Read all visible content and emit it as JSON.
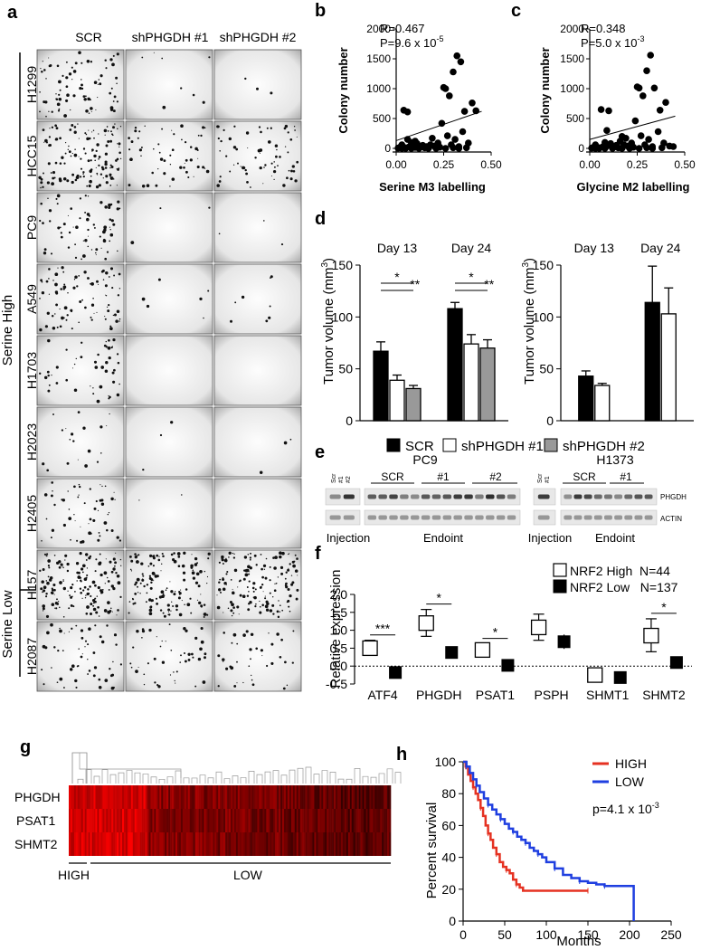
{
  "panel_letters": {
    "a": "a",
    "b": "b",
    "c": "c",
    "d": "d",
    "e": "e",
    "f": "f",
    "g": "g",
    "h": "h"
  },
  "panel_a": {
    "columns": [
      "SCR",
      "shPHGDH #1",
      "shPHGDH #2"
    ],
    "rows": [
      "H1299",
      "HCC15",
      "PC9",
      "A549",
      "H1703",
      "H2023",
      "H2405",
      "H157",
      "H2087"
    ],
    "group_high": "Serine High",
    "group_low": "Serine Low",
    "densities": [
      [
        0.5,
        0.05,
        0.02
      ],
      [
        0.9,
        0.35,
        0.45
      ],
      [
        0.45,
        0.02,
        0.02
      ],
      [
        0.55,
        0.04,
        0.05
      ],
      [
        0.3,
        0.0,
        0.0
      ],
      [
        0.12,
        0.02,
        0.02
      ],
      [
        0.35,
        0.01,
        0.0
      ],
      [
        1.0,
        0.9,
        0.95
      ],
      [
        0.35,
        0.3,
        0.25
      ]
    ]
  },
  "panel_b": {
    "stats_r": "R=0.467",
    "stats_p": "P=9.6 x 10",
    "stats_p_exp": "-5",
    "chart_data": {
      "type": "scatter",
      "xlabel": "Serine M3 labelling",
      "ylabel": "Colony number",
      "xlim": [
        0.0,
        0.5
      ],
      "ylim": [
        0,
        2000
      ],
      "xticks": [
        "0.00",
        "0.25",
        "0.50"
      ],
      "yticks": [
        "0",
        "500",
        "1000",
        "1500",
        "2000"
      ],
      "points": [
        [
          0.02,
          20
        ],
        [
          0.03,
          60
        ],
        [
          0.05,
          10
        ],
        [
          0.06,
          150
        ],
        [
          0.07,
          30
        ],
        [
          0.08,
          100
        ],
        [
          0.09,
          40
        ],
        [
          0.1,
          15
        ],
        [
          0.11,
          80
        ],
        [
          0.12,
          5
        ],
        [
          0.13,
          25
        ],
        [
          0.14,
          50
        ],
        [
          0.15,
          10
        ],
        [
          0.04,
          640
        ],
        [
          0.06,
          610
        ],
        [
          0.1,
          120
        ],
        [
          0.16,
          30
        ],
        [
          0.18,
          60
        ],
        [
          0.19,
          170
        ],
        [
          0.2,
          40
        ],
        [
          0.22,
          90
        ],
        [
          0.23,
          20
        ],
        [
          0.24,
          420
        ],
        [
          0.25,
          1020
        ],
        [
          0.26,
          1000
        ],
        [
          0.27,
          210
        ],
        [
          0.28,
          880
        ],
        [
          0.29,
          60
        ],
        [
          0.3,
          1280
        ],
        [
          0.31,
          150
        ],
        [
          0.32,
          1550
        ],
        [
          0.33,
          30
        ],
        [
          0.34,
          1450
        ],
        [
          0.35,
          280
        ],
        [
          0.36,
          620
        ],
        [
          0.37,
          10
        ],
        [
          0.38,
          90
        ],
        [
          0.4,
          760
        ],
        [
          0.42,
          630
        ],
        [
          0.01,
          5
        ],
        [
          0.03,
          0
        ],
        [
          0.05,
          0
        ],
        [
          0.08,
          0
        ],
        [
          0.12,
          0
        ],
        [
          0.17,
          0
        ],
        [
          0.21,
          0
        ],
        [
          0.26,
          0
        ],
        [
          0.3,
          10
        ],
        [
          0.33,
          0
        ]
      ],
      "trend": [
        [
          0.0,
          130
        ],
        [
          0.45,
          620
        ]
      ]
    }
  },
  "panel_c": {
    "stats_r": "R=0.348",
    "stats_p": "P=5.0 x 10",
    "stats_p_exp": "-3",
    "chart_data": {
      "type": "scatter",
      "xlabel": "Glycine M2 labelling",
      "ylabel": "Colony number",
      "xlim": [
        0.0,
        0.5
      ],
      "ylim": [
        0,
        2000
      ],
      "xticks": [
        "0.00",
        "0.25",
        "0.50"
      ],
      "yticks": [
        "0",
        "500",
        "1000",
        "1500",
        "2000"
      ],
      "points": [
        [
          0.02,
          20
        ],
        [
          0.03,
          60
        ],
        [
          0.05,
          10
        ],
        [
          0.06,
          650
        ],
        [
          0.07,
          30
        ],
        [
          0.08,
          100
        ],
        [
          0.09,
          40
        ],
        [
          0.1,
          630
        ],
        [
          0.11,
          80
        ],
        [
          0.12,
          5
        ],
        [
          0.13,
          25
        ],
        [
          0.14,
          50
        ],
        [
          0.15,
          10
        ],
        [
          0.16,
          120
        ],
        [
          0.18,
          60
        ],
        [
          0.19,
          170
        ],
        [
          0.2,
          40
        ],
        [
          0.22,
          90
        ],
        [
          0.23,
          20
        ],
        [
          0.24,
          460
        ],
        [
          0.25,
          1030
        ],
        [
          0.26,
          1010
        ],
        [
          0.27,
          210
        ],
        [
          0.28,
          880
        ],
        [
          0.29,
          60
        ],
        [
          0.3,
          1300
        ],
        [
          0.31,
          150
        ],
        [
          0.32,
          1560
        ],
        [
          0.33,
          30
        ],
        [
          0.34,
          1010
        ],
        [
          0.36,
          280
        ],
        [
          0.37,
          640
        ],
        [
          0.38,
          10
        ],
        [
          0.39,
          90
        ],
        [
          0.4,
          770
        ],
        [
          0.42,
          40
        ],
        [
          0.44,
          30
        ],
        [
          0.01,
          5
        ],
        [
          0.03,
          0
        ],
        [
          0.05,
          0
        ],
        [
          0.08,
          0
        ],
        [
          0.12,
          0
        ],
        [
          0.17,
          0
        ],
        [
          0.21,
          0
        ],
        [
          0.26,
          0
        ],
        [
          0.3,
          10
        ],
        [
          0.33,
          0
        ],
        [
          0.17,
          200
        ],
        [
          0.09,
          300
        ]
      ],
      "trend": [
        [
          0.0,
          150
        ],
        [
          0.45,
          540
        ]
      ]
    }
  },
  "panel_d": {
    "ylabel": "Tumor volume (mm",
    "ylabel_sup": "3",
    "ylabel_close": ")",
    "legend": [
      "SCR",
      "shPHGDH #1",
      "shPHGDH #2"
    ],
    "sig_marks": [
      "*",
      "**",
      "*",
      "**"
    ],
    "chart_data": [
      {
        "type": "bar",
        "categories": [
          "Day 13",
          "Day 24"
        ],
        "ylim": [
          0,
          150
        ],
        "yticks": [
          "0",
          "50",
          "100",
          "150"
        ],
        "series": [
          {
            "name": "SCR",
            "values": [
              67,
              108
            ],
            "errors": [
              9,
              6
            ],
            "color": "#000000"
          },
          {
            "name": "shPHGDH #1",
            "values": [
              39,
              74
            ],
            "errors": [
              5,
              9
            ],
            "color": "#ffffff"
          },
          {
            "name": "shPHGDH #2",
            "values": [
              31,
              70
            ],
            "errors": [
              3,
              8
            ],
            "color": "#999999"
          }
        ]
      },
      {
        "type": "bar",
        "categories": [
          "Day 13",
          "Day 24"
        ],
        "ylim": [
          0,
          150
        ],
        "yticks": [
          "0",
          "50",
          "100",
          "150"
        ],
        "series": [
          {
            "name": "SCR",
            "values": [
              43,
              114
            ],
            "errors": [
              5,
              35
            ],
            "color": "#000000"
          },
          {
            "name": "shPHGDH #1",
            "values": [
              34,
              103
            ],
            "errors": [
              2,
              25
            ],
            "color": "#ffffff"
          }
        ]
      }
    ]
  },
  "panel_e": {
    "pc9_title": "PC9",
    "h1373_title": "H1373",
    "lane_left": [
      "Scr",
      "#1",
      "#2"
    ],
    "lane_right": [
      "Scr",
      "#1"
    ],
    "group_scr": "SCR",
    "group_1": "#1",
    "group_2": "#2",
    "band_phgdh": "PHGDH",
    "band_actin": "ACTIN",
    "injection": "Injection",
    "endpoint": "Endoint"
  },
  "panel_f": {
    "ylabel": "Relative expression",
    "legend_high": "NRF2 High  N=44",
    "legend_low": "NRF2 Low   N=137",
    "sig_marks": [
      "***",
      "*",
      "*",
      "*"
    ],
    "chart_data": {
      "type": "box",
      "categories": [
        "ATF4",
        "PHGDH",
        "PSAT1",
        "PSPH",
        "SHMT1",
        "SHMT2"
      ],
      "ylim": [
        -0.5,
        2.0
      ],
      "yticks": [
        "-0.5",
        "0.0",
        "0.5",
        "1.0",
        "1.5",
        "2.0"
      ],
      "high": [
        [
          0.5,
          0.3,
          0.72
        ],
        [
          1.2,
          0.83,
          1.58
        ],
        [
          0.45,
          0.25,
          0.62
        ],
        [
          1.08,
          0.72,
          1.45
        ],
        [
          -0.25,
          -0.3,
          -0.2
        ],
        [
          0.85,
          0.4,
          1.32
        ]
      ],
      "low": [
        [
          -0.18,
          -0.22,
          -0.14
        ],
        [
          0.38,
          0.33,
          0.43
        ],
        [
          0.02,
          -0.02,
          0.06
        ],
        [
          0.68,
          0.48,
          0.88
        ],
        [
          -0.32,
          -0.36,
          -0.28
        ],
        [
          0.1,
          0.06,
          0.14
        ]
      ]
    }
  },
  "panel_g": {
    "genes": [
      "PHGDH",
      "PSAT1",
      "SHMT2"
    ],
    "group_high": "HIGH",
    "group_low": "LOW",
    "chart_data": {
      "type": "heatmap",
      "rows": 3,
      "columns": 181,
      "high_columns": 44
    }
  },
  "panel_h": {
    "legend": [
      "HIGH",
      "LOW"
    ],
    "pvalue": "p=4.1 x 10",
    "pvalue_exp": "-3",
    "chart_data": {
      "type": "line",
      "xlabel": "Months",
      "ylabel": "Percent survival",
      "xlim": [
        0,
        250
      ],
      "ylim": [
        0,
        100
      ],
      "xticks": [
        "0",
        "50",
        "100",
        "150",
        "200",
        "250"
      ],
      "yticks": [
        "0",
        "20",
        "40",
        "60",
        "80",
        "100"
      ],
      "series": [
        {
          "name": "HIGH",
          "color": "#e53222",
          "points": [
            [
              0,
              100
            ],
            [
              3,
              97
            ],
            [
              6,
              92
            ],
            [
              9,
              88
            ],
            [
              12,
              84
            ],
            [
              15,
              80
            ],
            [
              18,
              76
            ],
            [
              21,
              71
            ],
            [
              24,
              66
            ],
            [
              27,
              60
            ],
            [
              30,
              55
            ],
            [
              33,
              51
            ],
            [
              36,
              46
            ],
            [
              40,
              42
            ],
            [
              44,
              37
            ],
            [
              48,
              34
            ],
            [
              52,
              32
            ],
            [
              56,
              30
            ],
            [
              60,
              26
            ],
            [
              64,
              23
            ],
            [
              68,
              21
            ],
            [
              72,
              19
            ],
            [
              150,
              19
            ]
          ]
        },
        {
          "name": "LOW",
          "color": "#1f3fe0",
          "points": [
            [
              0,
              100
            ],
            [
              4,
              97
            ],
            [
              8,
              93
            ],
            [
              12,
              89
            ],
            [
              16,
              85
            ],
            [
              20,
              81
            ],
            [
              25,
              77
            ],
            [
              30,
              73
            ],
            [
              35,
              70
            ],
            [
              40,
              67
            ],
            [
              45,
              64
            ],
            [
              50,
              61
            ],
            [
              55,
              58
            ],
            [
              60,
              56
            ],
            [
              65,
              53
            ],
            [
              70,
              51
            ],
            [
              75,
              49
            ],
            [
              80,
              46
            ],
            [
              85,
              44
            ],
            [
              90,
              42
            ],
            [
              95,
              40
            ],
            [
              100,
              37
            ],
            [
              110,
              33
            ],
            [
              120,
              29
            ],
            [
              130,
              27
            ],
            [
              140,
              25
            ],
            [
              150,
              24
            ],
            [
              160,
              23
            ],
            [
              170,
              22
            ],
            [
              200,
              22
            ],
            [
              205,
              0
            ]
          ]
        }
      ]
    }
  }
}
